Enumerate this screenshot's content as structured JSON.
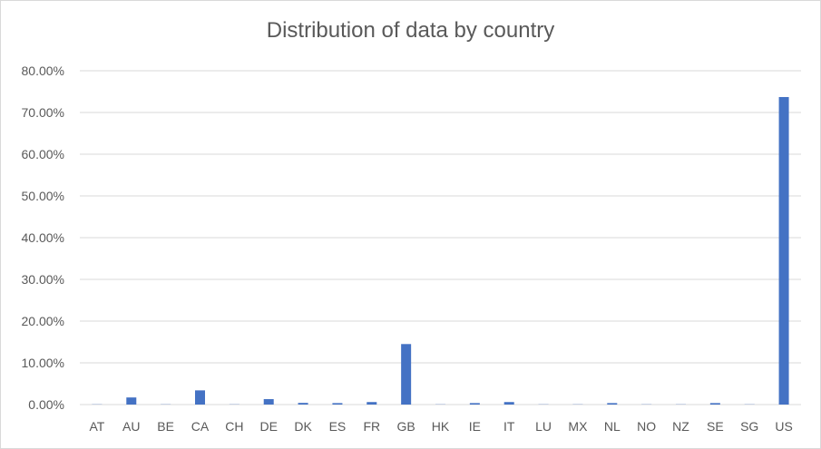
{
  "chart_data": {
    "type": "bar",
    "title": "Distribution of data by country",
    "xlabel": "",
    "ylabel": "",
    "categories": [
      "AT",
      "AU",
      "BE",
      "CA",
      "CH",
      "DE",
      "DK",
      "ES",
      "FR",
      "GB",
      "HK",
      "IE",
      "IT",
      "LU",
      "MX",
      "NL",
      "NO",
      "NZ",
      "SE",
      "SG",
      "US"
    ],
    "values": [
      0.05,
      1.7,
      0.05,
      3.4,
      0.05,
      1.3,
      0.4,
      0.35,
      0.6,
      14.5,
      0.05,
      0.35,
      0.6,
      0.05,
      0.05,
      0.35,
      0.05,
      0.05,
      0.35,
      0.05,
      73.7
    ],
    "y_ticks": [
      "0.00%",
      "10.00%",
      "20.00%",
      "30.00%",
      "40.00%",
      "50.00%",
      "60.00%",
      "70.00%",
      "80.00%"
    ],
    "ylim": [
      0,
      80
    ],
    "grid": true,
    "legend": "none",
    "bar_color": "#4472c4",
    "gridline_color": "#d9d9d9"
  }
}
